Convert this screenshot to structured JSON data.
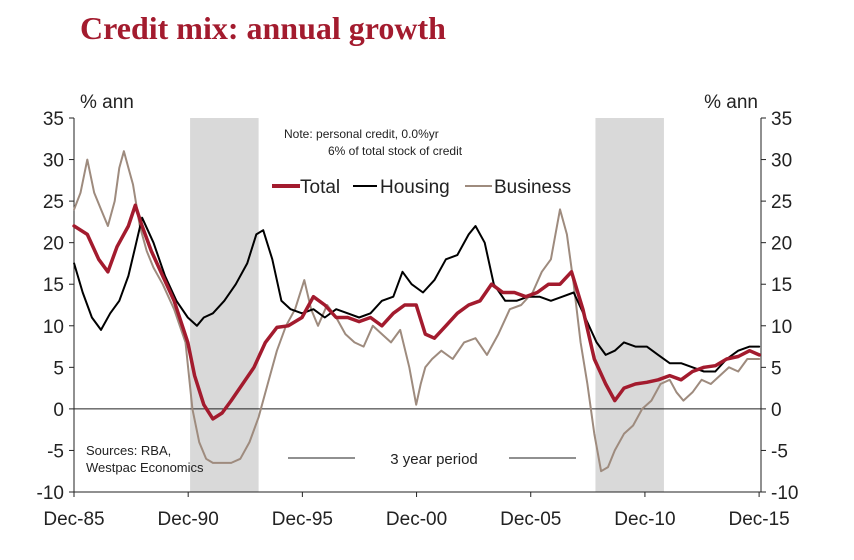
{
  "chart_data": {
    "type": "line",
    "title": "Credit mix: annual growth",
    "ylabel_left": "% ann",
    "ylabel_right": "% ann",
    "ylim": [
      -10,
      35
    ],
    "yticks": [
      35,
      30,
      25,
      20,
      15,
      10,
      5,
      0,
      -5,
      -10
    ],
    "xlim": [
      1985.917,
      2016.0
    ],
    "xtick_labels": [
      "Dec-85",
      "Dec-90",
      "Dec-95",
      "Dec-00",
      "Dec-05",
      "Dec-10",
      "Dec-15"
    ],
    "xtick_years": [
      1985.917,
      1990.917,
      1995.917,
      2000.917,
      2005.917,
      2010.917,
      2015.917
    ],
    "note_line1": "Note: personal credit, 0.0%yr",
    "note_line2": "6% of total stock of credit",
    "sources_line1": "Sources: RBA,",
    "sources_line2": "Westpac Economics",
    "period_label": "3 year period",
    "shaded_periods": [
      [
        1991.0,
        1994.0
      ],
      [
        2008.75,
        2011.75
      ]
    ],
    "legend_placement": "top-center",
    "series": [
      {
        "name": "Total",
        "color": "#a31b2e",
        "x": [
          1985.92,
          1986.5,
          1987.0,
          1987.4,
          1987.8,
          1988.3,
          1988.6,
          1988.9,
          1989.3,
          1989.8,
          1990.3,
          1990.9,
          1991.2,
          1991.6,
          1992.0,
          1992.4,
          1992.8,
          1993.3,
          1993.8,
          1994.3,
          1994.8,
          1995.3,
          1995.9,
          1996.4,
          1996.9,
          1997.4,
          1997.9,
          1998.4,
          1998.9,
          1999.4,
          1999.9,
          2000.4,
          2000.9,
          2001.3,
          2001.7,
          2002.2,
          2002.7,
          2003.2,
          2003.7,
          2004.2,
          2004.7,
          2005.2,
          2005.7,
          2006.2,
          2006.7,
          2007.2,
          2007.7,
          2008.2,
          2008.7,
          2009.2,
          2009.6,
          2010.0,
          2010.5,
          2011.0,
          2011.5,
          2012.0,
          2012.5,
          2013.0,
          2013.5,
          2014.0,
          2014.5,
          2015.0,
          2015.5,
          2015.92
        ],
        "values": [
          22,
          21,
          18,
          16.5,
          19.5,
          22,
          24.5,
          22,
          19,
          16,
          13,
          8,
          4,
          0.5,
          -1.2,
          -0.5,
          1,
          3,
          5,
          8,
          9.8,
          10,
          11,
          13.5,
          12.5,
          11,
          11,
          10.5,
          11,
          10,
          11.5,
          12.5,
          12.5,
          9,
          8.5,
          10,
          11.5,
          12.5,
          13,
          15,
          14,
          14,
          13.5,
          14,
          15,
          15,
          16.5,
          12,
          6,
          3,
          1,
          2.5,
          3,
          3.2,
          3.5,
          4,
          3.5,
          4.5,
          5,
          5.2,
          6,
          6.3,
          7,
          6.5
        ]
      },
      {
        "name": "Housing",
        "color": "#000000",
        "x": [
          1985.92,
          1986.3,
          1986.7,
          1987.1,
          1987.5,
          1987.9,
          1988.3,
          1988.6,
          1988.9,
          1989.4,
          1989.9,
          1990.4,
          1990.9,
          1991.3,
          1991.6,
          1992.0,
          1992.5,
          1993.0,
          1993.5,
          1993.9,
          1994.2,
          1994.6,
          1995.0,
          1995.4,
          1995.9,
          1996.4,
          1996.9,
          1997.4,
          1997.9,
          1998.4,
          1998.9,
          1999.4,
          1999.9,
          2000.3,
          2000.7,
          2001.2,
          2001.7,
          2002.2,
          2002.7,
          2003.2,
          2003.5,
          2003.9,
          2004.3,
          2004.8,
          2005.3,
          2005.8,
          2006.3,
          2006.8,
          2007.3,
          2007.8,
          2008.3,
          2008.8,
          2009.2,
          2009.6,
          2010.0,
          2010.5,
          2011.0,
          2011.5,
          2012.0,
          2012.5,
          2013.0,
          2013.5,
          2014.0,
          2014.5,
          2015.0,
          2015.5,
          2015.92
        ],
        "values": [
          17.5,
          14,
          11,
          9.5,
          11.5,
          13,
          16,
          19.5,
          23,
          20,
          16,
          13,
          11,
          10,
          11,
          11.5,
          13,
          15,
          17.5,
          21,
          21.5,
          18,
          13,
          12,
          11.5,
          12,
          11,
          12,
          11.5,
          11,
          11.5,
          13,
          13.5,
          16.5,
          15,
          14,
          15.5,
          18,
          18.5,
          21,
          22,
          20,
          15,
          13,
          13,
          13.5,
          13.5,
          13,
          13.5,
          14,
          11,
          8,
          6.5,
          7,
          8,
          7.5,
          7.5,
          6.5,
          5.5,
          5.5,
          5,
          4.5,
          4.5,
          6,
          7,
          7.5,
          7.5
        ]
      },
      {
        "name": "Business",
        "color": "#9e8b7e",
        "x": [
          1985.92,
          1986.2,
          1986.5,
          1986.8,
          1987.1,
          1987.4,
          1987.7,
          1987.9,
          1988.1,
          1988.3,
          1988.5,
          1988.8,
          1989.1,
          1989.4,
          1989.8,
          1990.3,
          1990.8,
          1991.1,
          1991.4,
          1991.7,
          1992.0,
          1992.4,
          1992.8,
          1993.2,
          1993.6,
          1994.0,
          1994.4,
          1994.8,
          1995.2,
          1995.6,
          1996.0,
          1996.3,
          1996.6,
          1997.0,
          1997.4,
          1997.8,
          1998.2,
          1998.6,
          1999.0,
          1999.4,
          1999.8,
          2000.2,
          2000.6,
          2000.9,
          2001.1,
          2001.3,
          2001.6,
          2002.0,
          2002.5,
          2003.0,
          2003.5,
          2004.0,
          2004.5,
          2005.0,
          2005.5,
          2006.0,
          2006.4,
          2006.8,
          2007.2,
          2007.5,
          2007.8,
          2008.1,
          2008.4,
          2008.7,
          2009.0,
          2009.3,
          2009.6,
          2010.0,
          2010.4,
          2010.8,
          2011.2,
          2011.6,
          2012.0,
          2012.3,
          2012.6,
          2013.0,
          2013.4,
          2013.8,
          2014.2,
          2014.6,
          2015.0,
          2015.4,
          2015.92
        ],
        "values": [
          24,
          26,
          30,
          26,
          24,
          22,
          25,
          29,
          31,
          29,
          27,
          22,
          19,
          17,
          15,
          12,
          8,
          0,
          -4,
          -6,
          -6.5,
          -6.5,
          -6.5,
          -6,
          -4,
          -1,
          3,
          7,
          10,
          12,
          15.5,
          12,
          10,
          12.5,
          11,
          9,
          8,
          7.5,
          10,
          9,
          8,
          9.5,
          5,
          0.5,
          3,
          5,
          6,
          7,
          6,
          8,
          8.5,
          6.5,
          9,
          12,
          12.5,
          14,
          16.5,
          18,
          24,
          21,
          15,
          8,
          3,
          -3,
          -7.5,
          -7,
          -5,
          -3,
          -2,
          0,
          1,
          3,
          3.5,
          2,
          1,
          2,
          3.5,
          3,
          4,
          5,
          4.5,
          6,
          6
        ]
      }
    ]
  }
}
